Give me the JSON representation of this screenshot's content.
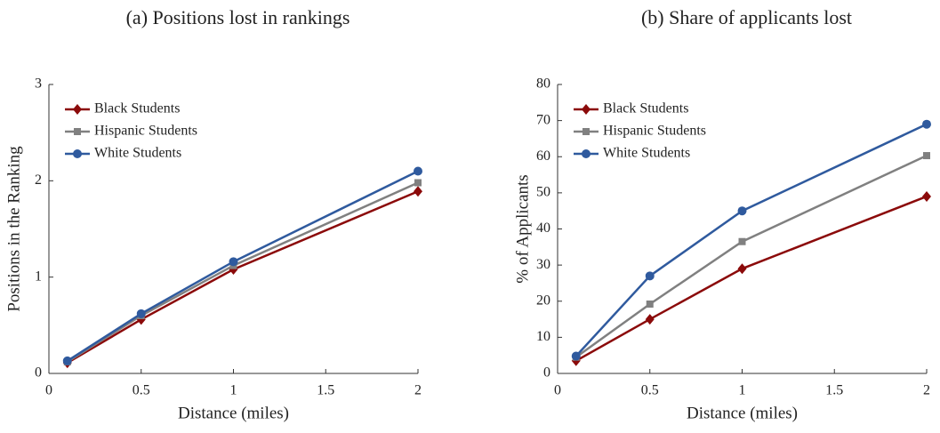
{
  "chart_data": [
    {
      "type": "line",
      "title": "(a) Positions lost in rankings",
      "x_label": "Distance (miles)",
      "y_label": "Positions in the Ranking",
      "x": [
        0.1,
        0.5,
        1,
        2
      ],
      "xlim": [
        0,
        2
      ],
      "xticks": [
        0,
        0.5,
        1,
        1.5,
        2
      ],
      "ylim": [
        0,
        3
      ],
      "yticks": [
        0,
        1,
        2,
        3
      ],
      "legend": "upper left",
      "series": [
        {
          "name": "Black Students",
          "color": "#8b0a0a",
          "marker": "diamond",
          "values": [
            0.11,
            0.56,
            1.08,
            1.89
          ]
        },
        {
          "name": "Hispanic Students",
          "color": "#808080",
          "marker": "square",
          "values": [
            0.12,
            0.6,
            1.12,
            1.98
          ]
        },
        {
          "name": "White Students",
          "color": "#2f5a9e",
          "marker": "circle",
          "values": [
            0.13,
            0.62,
            1.16,
            2.1
          ]
        }
      ]
    },
    {
      "type": "line",
      "title": "(b) Share of applicants lost",
      "x_label": "Distance (miles)",
      "y_label": "% of Applicants",
      "x": [
        0.1,
        0.5,
        1,
        2
      ],
      "xlim": [
        0,
        2
      ],
      "xticks": [
        0,
        0.5,
        1,
        1.5,
        2
      ],
      "ylim": [
        0,
        80
      ],
      "yticks": [
        0,
        10,
        20,
        30,
        40,
        50,
        60,
        70,
        80
      ],
      "legend": "upper left",
      "series": [
        {
          "name": "Black Students",
          "color": "#8b0a0a",
          "marker": "diamond",
          "values": [
            3.5,
            15,
            29,
            49
          ]
        },
        {
          "name": "Hispanic Students",
          "color": "#808080",
          "marker": "square",
          "values": [
            4.5,
            19.2,
            36.5,
            60.3
          ]
        },
        {
          "name": "White Students",
          "color": "#2f5a9e",
          "marker": "circle",
          "values": [
            4.8,
            27,
            45,
            69
          ]
        }
      ]
    }
  ]
}
